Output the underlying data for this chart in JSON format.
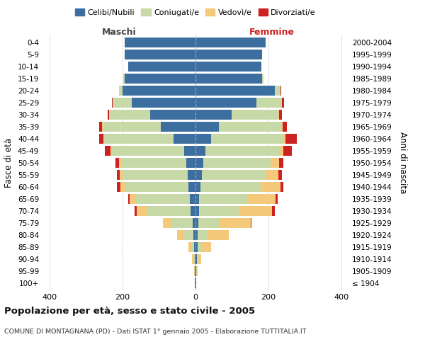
{
  "title_main": "Popolazione per età, sesso e stato civile - 2005",
  "subtitle": "COMUNE DI MONTAGNANA (PD) - Dati ISTAT 1° gennaio 2005 - Elaborazione TUTTITALIA.IT",
  "xlabel_left": "Maschi",
  "xlabel_right": "Femmine",
  "ylabel_left": "Fasce di età",
  "ylabel_right": "Anni di nascita",
  "age_groups": [
    "100+",
    "95-99",
    "90-94",
    "85-89",
    "80-84",
    "75-79",
    "70-74",
    "65-69",
    "60-64",
    "55-59",
    "50-54",
    "45-49",
    "40-44",
    "35-39",
    "30-34",
    "25-29",
    "20-24",
    "15-19",
    "10-14",
    "5-9",
    "0-4"
  ],
  "birth_years": [
    "≤ 1904",
    "1905-1909",
    "1910-1914",
    "1915-1919",
    "1920-1924",
    "1925-1929",
    "1930-1934",
    "1935-1939",
    "1940-1944",
    "1945-1949",
    "1950-1954",
    "1955-1959",
    "1960-1964",
    "1965-1969",
    "1970-1974",
    "1975-1979",
    "1980-1984",
    "1985-1989",
    "1990-1994",
    "1995-1999",
    "2000-2004"
  ],
  "colors": {
    "celibi": "#3d6ea0",
    "coniugati": "#c8d9a8",
    "vedovi": "#f5c97a",
    "divorziati": "#cc2222"
  },
  "legend_labels": [
    "Celibi/Nubili",
    "Coniugati/e",
    "Vedovì/e",
    "Divorziati/e"
  ],
  "male": {
    "celibi": [
      1,
      1,
      2,
      3,
      5,
      8,
      14,
      15,
      20,
      22,
      25,
      32,
      60,
      95,
      125,
      175,
      200,
      195,
      185,
      195,
      195
    ],
    "coniugati": [
      0,
      1,
      4,
      8,
      28,
      60,
      120,
      148,
      175,
      178,
      180,
      198,
      190,
      160,
      112,
      52,
      10,
      3,
      0,
      0,
      0
    ],
    "vedovi": [
      0,
      1,
      4,
      8,
      18,
      22,
      28,
      18,
      12,
      8,
      5,
      3,
      2,
      1,
      1,
      0,
      0,
      0,
      0,
      0,
      0
    ],
    "divorziati": [
      0,
      0,
      0,
      0,
      0,
      0,
      5,
      3,
      8,
      8,
      10,
      15,
      12,
      8,
      4,
      3,
      0,
      0,
      0,
      0,
      0
    ]
  },
  "female": {
    "nubili": [
      1,
      2,
      3,
      5,
      5,
      8,
      10,
      10,
      14,
      18,
      22,
      28,
      42,
      65,
      100,
      168,
      218,
      183,
      180,
      182,
      192
    ],
    "coniugati": [
      0,
      1,
      5,
      10,
      28,
      58,
      108,
      132,
      165,
      172,
      185,
      202,
      200,
      172,
      128,
      68,
      15,
      3,
      0,
      0,
      0
    ],
    "vedovi": [
      0,
      2,
      8,
      28,
      58,
      85,
      92,
      78,
      55,
      38,
      22,
      12,
      5,
      2,
      2,
      2,
      0,
      0,
      0,
      0,
      0
    ],
    "divorziati": [
      0,
      0,
      0,
      0,
      1,
      2,
      8,
      5,
      8,
      10,
      12,
      22,
      32,
      12,
      8,
      5,
      2,
      0,
      0,
      0,
      0
    ]
  },
  "xlim": 420,
  "xticks": [
    -400,
    -200,
    0,
    200,
    400
  ],
  "xticklabels": [
    "400",
    "200",
    "0",
    "200",
    "400"
  ],
  "background_color": "#ffffff",
  "grid_color": "#cccccc"
}
